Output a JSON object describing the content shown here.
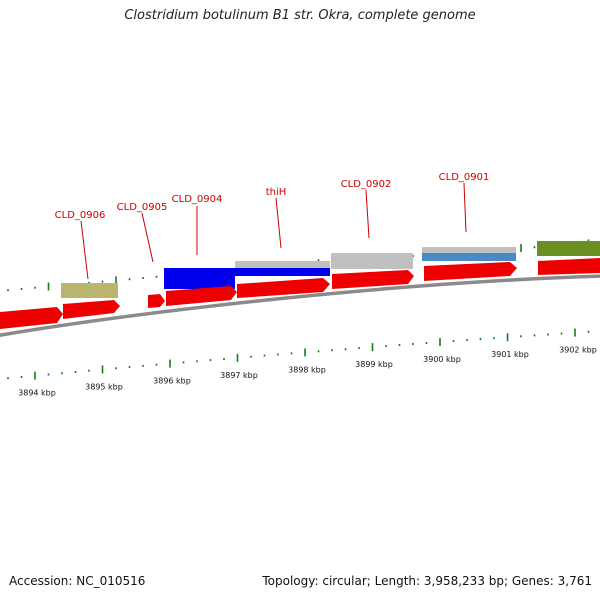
{
  "title": "Clostridium botulinum B1 str. Okra, complete genome",
  "footer": {
    "accession": "Accession: NC_010516",
    "summary": "Topology: circular; Length: 3,958,233 bp; Genes: 3,761"
  },
  "colors": {
    "axis": "#8a8a8a",
    "tick": "#1a7a1a",
    "label": "#cc0000",
    "cds": "#ee0000",
    "blue": "#0000ee",
    "grey": "#c0c0c0",
    "steel": "#4a8ac4",
    "khaki": "#b9b46e",
    "olive": "#6b8e23"
  },
  "scale_labels": [
    "3894 kbp",
    "3895 kbp",
    "3896 kbp",
    "3897 kbp",
    "3898 kbp",
    "3899 kbp",
    "3900 kbp",
    "3901 kbp",
    "3902 kbp"
  ],
  "gene_labels": [
    "CLD_0906",
    "CLD_0905",
    "CLD_0904",
    "thiH",
    "CLD_0902",
    "CLD_0901"
  ]
}
